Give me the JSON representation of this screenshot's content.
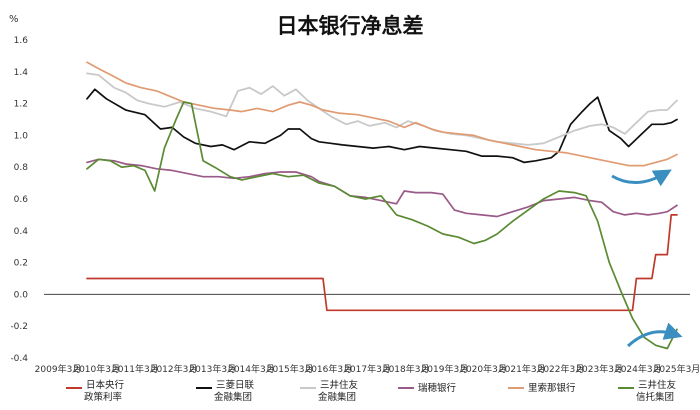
{
  "chart_data": {
    "type": "line",
    "title": "日本银行净息差",
    "unit_label": "%",
    "xlabel": "",
    "ylabel": "",
    "ylim": [
      -0.4,
      1.6
    ],
    "y_ticks": [
      "1.6",
      "1.4",
      "1.2",
      "1.0",
      "0.8",
      "0.6",
      "0.4",
      "0.2",
      "0.0",
      "-0.2",
      "-0.4"
    ],
    "y_tick_values": [
      1.6,
      1.4,
      1.2,
      1.0,
      0.8,
      0.6,
      0.4,
      0.2,
      0.0,
      -0.2,
      -0.4
    ],
    "xlim": [
      2009.25,
      2025.25
    ],
    "x_ticks": [
      "2009年3月",
      "2010年3月",
      "2011年3月",
      "2012年3月",
      "2013年3月",
      "2014年3月",
      "2015年3月",
      "2016年3月",
      "2017年3月",
      "2018年3月",
      "2019年3月",
      "2020年3月",
      "2021年3月",
      "2022年3月",
      "2023年3月",
      "2024年3月",
      "2025年3月"
    ],
    "x_tick_values": [
      2009.25,
      2010.25,
      2011.25,
      2012.25,
      2013.25,
      2014.25,
      2015.25,
      2016.25,
      2017.25,
      2018.25,
      2019.25,
      2020.25,
      2021.25,
      2022.25,
      2023.25,
      2024.25,
      2025.25
    ],
    "grid": false,
    "legend_position": "bottom",
    "series": [
      {
        "name": "日本央行\n政策利率",
        "color": "#c0392b",
        "step": true,
        "x": [
          2010.0,
          2016.1,
          2016.2,
          2024.1,
          2024.2,
          2024.6,
          2024.7,
          2025.0,
          2025.1,
          2025.25
        ],
        "y": [
          0.1,
          0.1,
          -0.1,
          -0.1,
          0.1,
          0.1,
          0.25,
          0.25,
          0.5,
          0.5
        ]
      },
      {
        "name": "三菱日联\n金融集团",
        "color": "#111111",
        "x": [
          2010.0,
          2010.2,
          2010.5,
          2011.0,
          2011.5,
          2011.9,
          2012.2,
          2012.5,
          2012.8,
          2013.2,
          2013.5,
          2013.8,
          2014.2,
          2014.6,
          2015.0,
          2015.2,
          2015.5,
          2015.8,
          2016.0,
          2016.3,
          2016.6,
          2017.0,
          2017.4,
          2017.8,
          2018.2,
          2018.6,
          2019.0,
          2019.4,
          2019.8,
          2020.2,
          2020.6,
          2021.0,
          2021.3,
          2021.6,
          2022.0,
          2022.2,
          2022.5,
          2022.8,
          2023.0,
          2023.2,
          2023.5,
          2023.8,
          2024.0,
          2024.3,
          2024.6,
          2024.9,
          2025.1,
          2025.25
        ],
        "y": [
          1.23,
          1.29,
          1.23,
          1.16,
          1.13,
          1.04,
          1.05,
          0.99,
          0.95,
          0.93,
          0.94,
          0.91,
          0.96,
          0.95,
          1.0,
          1.04,
          1.04,
          0.98,
          0.96,
          0.95,
          0.94,
          0.93,
          0.92,
          0.93,
          0.91,
          0.93,
          0.92,
          0.91,
          0.9,
          0.87,
          0.87,
          0.86,
          0.83,
          0.84,
          0.86,
          0.9,
          1.07,
          1.15,
          1.2,
          1.24,
          1.03,
          0.98,
          0.93,
          1.0,
          1.07,
          1.07,
          1.08,
          1.1
        ]
      },
      {
        "name": "三井住友\n金融集团",
        "color": "#c9c9c9",
        "x": [
          2010.0,
          2010.3,
          2010.7,
          2011.0,
          2011.3,
          2011.6,
          2012.0,
          2012.4,
          2012.8,
          2013.2,
          2013.6,
          2013.9,
          2014.2,
          2014.5,
          2014.8,
          2015.1,
          2015.4,
          2015.7,
          2016.0,
          2016.3,
          2016.7,
          2017.0,
          2017.3,
          2017.7,
          2018.0,
          2018.3,
          2018.7,
          2019.0,
          2019.4,
          2019.8,
          2020.2,
          2020.6,
          2021.0,
          2021.4,
          2021.8,
          2022.2,
          2022.6,
          2023.0,
          2023.3,
          2023.6,
          2023.9,
          2024.2,
          2024.5,
          2024.8,
          2025.0,
          2025.25
        ],
        "y": [
          1.39,
          1.38,
          1.3,
          1.27,
          1.22,
          1.2,
          1.18,
          1.21,
          1.17,
          1.15,
          1.12,
          1.28,
          1.3,
          1.26,
          1.31,
          1.25,
          1.29,
          1.22,
          1.17,
          1.12,
          1.07,
          1.09,
          1.06,
          1.08,
          1.05,
          1.09,
          1.06,
          1.03,
          1.01,
          1.0,
          0.98,
          0.96,
          0.95,
          0.94,
          0.95,
          0.99,
          1.03,
          1.06,
          1.07,
          1.05,
          1.01,
          1.08,
          1.15,
          1.16,
          1.16,
          1.22
        ]
      },
      {
        "name": "瑞穂银行",
        "color": "#9a5a88",
        "x": [
          2010.0,
          2010.3,
          2010.7,
          2011.0,
          2011.4,
          2011.8,
          2012.2,
          2012.6,
          2013.0,
          2013.4,
          2013.8,
          2014.2,
          2014.6,
          2015.0,
          2015.4,
          2015.8,
          2016.0,
          2016.4,
          2016.8,
          2017.2,
          2017.6,
          2018.0,
          2018.2,
          2018.5,
          2018.9,
          2019.2,
          2019.5,
          2019.8,
          2020.2,
          2020.6,
          2021.0,
          2021.4,
          2021.8,
          2022.2,
          2022.6,
          2023.0,
          2023.3,
          2023.6,
          2023.9,
          2024.2,
          2024.5,
          2024.8,
          2025.0,
          2025.25
        ],
        "y": [
          0.83,
          0.85,
          0.84,
          0.82,
          0.81,
          0.79,
          0.78,
          0.76,
          0.74,
          0.74,
          0.73,
          0.74,
          0.76,
          0.77,
          0.77,
          0.74,
          0.71,
          0.68,
          0.62,
          0.61,
          0.59,
          0.57,
          0.65,
          0.64,
          0.64,
          0.63,
          0.53,
          0.51,
          0.5,
          0.49,
          0.52,
          0.55,
          0.59,
          0.6,
          0.61,
          0.59,
          0.58,
          0.52,
          0.5,
          0.51,
          0.5,
          0.51,
          0.52,
          0.56
        ]
      },
      {
        "name": "里索那银行",
        "color": "#e09b72",
        "x": [
          2010.0,
          2010.3,
          2010.7,
          2011.0,
          2011.4,
          2011.8,
          2012.1,
          2012.5,
          2012.9,
          2013.3,
          2013.7,
          2014.0,
          2014.4,
          2014.8,
          2015.2,
          2015.5,
          2015.8,
          2016.1,
          2016.5,
          2017.0,
          2017.4,
          2017.8,
          2018.2,
          2018.5,
          2018.9,
          2019.2,
          2019.6,
          2020.0,
          2020.4,
          2020.8,
          2021.2,
          2021.6,
          2022.0,
          2022.4,
          2022.8,
          2023.2,
          2023.6,
          2024.0,
          2024.4,
          2024.7,
          2025.0,
          2025.25
        ],
        "y": [
          1.46,
          1.42,
          1.37,
          1.33,
          1.3,
          1.28,
          1.25,
          1.21,
          1.19,
          1.17,
          1.16,
          1.15,
          1.17,
          1.15,
          1.19,
          1.21,
          1.19,
          1.16,
          1.14,
          1.13,
          1.11,
          1.09,
          1.05,
          1.08,
          1.04,
          1.02,
          1.01,
          1.0,
          0.97,
          0.95,
          0.93,
          0.91,
          0.9,
          0.89,
          0.87,
          0.85,
          0.83,
          0.81,
          0.81,
          0.83,
          0.85,
          0.88
        ]
      },
      {
        "name": "三井住友\n信托集团",
        "color": "#5a8a32",
        "x": [
          2010.0,
          2010.3,
          2010.6,
          2010.9,
          2011.2,
          2011.5,
          2011.75,
          2012.0,
          2012.3,
          2012.5,
          2012.7,
          2013.0,
          2013.3,
          2013.7,
          2014.0,
          2014.4,
          2014.8,
          2015.2,
          2015.6,
          2016.0,
          2016.4,
          2016.8,
          2017.2,
          2017.6,
          2018.0,
          2018.4,
          2018.8,
          2019.2,
          2019.6,
          2020.0,
          2020.3,
          2020.6,
          2021.0,
          2021.4,
          2021.8,
          2022.2,
          2022.6,
          2022.9,
          2023.2,
          2023.5,
          2023.8,
          2024.1,
          2024.4,
          2024.7,
          2025.0,
          2025.25
        ],
        "y": [
          0.79,
          0.85,
          0.84,
          0.8,
          0.81,
          0.78,
          0.65,
          0.92,
          1.1,
          1.21,
          1.2,
          0.84,
          0.8,
          0.74,
          0.72,
          0.74,
          0.76,
          0.74,
          0.75,
          0.7,
          0.68,
          0.62,
          0.6,
          0.62,
          0.5,
          0.47,
          0.43,
          0.38,
          0.36,
          0.32,
          0.34,
          0.38,
          0.46,
          0.53,
          0.6,
          0.65,
          0.64,
          0.62,
          0.46,
          0.2,
          0.02,
          -0.15,
          -0.27,
          -0.32,
          -0.34,
          -0.22
        ]
      }
    ]
  }
}
